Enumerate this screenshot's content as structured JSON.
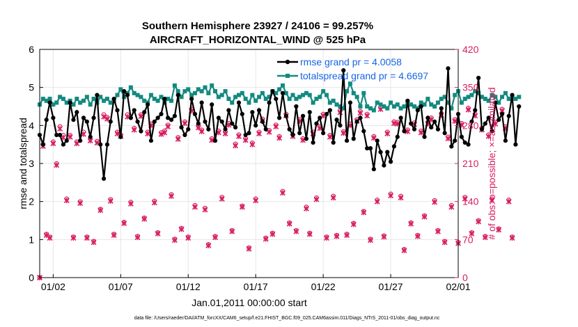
{
  "chart_data": {
    "type": "line",
    "title_line1": "Southern Hemisphere 23927 / 24106 = 99.257%",
    "title_line2": "AIRCRAFT_HORIZONTAL_WIND @ 525 hPa",
    "xlabel": "Jan.01,2011 00:00:00 start",
    "ylabel_left": "rmse and totalspread",
    "ylabel_right": "# of obs: o=possible; ×=assimilated",
    "footer": "data file: /Users/raeder/DAI/ATM_forcXX/CAM6_setup/f.e21.FHIST_BGC.f09_025.CAM6assim.011/Diags_NTrS_2011-01/obs_diag_output.nc",
    "xlim": [
      0.5,
      31.5
    ],
    "ylim_left": [
      0,
      6
    ],
    "ylim_right": [
      0,
      420
    ],
    "x_ticks": [
      {
        "value": 1.5,
        "label": "01/02"
      },
      {
        "value": 6.5,
        "label": "01/07"
      },
      {
        "value": 11.5,
        "label": "01/12"
      },
      {
        "value": 16.5,
        "label": "01/17"
      },
      {
        "value": 21.5,
        "label": "01/22"
      },
      {
        "value": 26.5,
        "label": "01/27"
      },
      {
        "value": 31.5,
        "label": "02/01"
      }
    ],
    "y_ticks_left": [
      0,
      1,
      2,
      3,
      4,
      5,
      6
    ],
    "y_ticks_right": [
      0,
      70,
      140,
      210,
      280,
      350,
      420
    ],
    "legend": [
      {
        "label": "rmse grand pr = 4.0058",
        "color": "#000000"
      },
      {
        "label": "totalspread grand pr = 4.6697",
        "color": "#138a80"
      }
    ],
    "colors": {
      "rmse": "#000000",
      "spread": "#138a80",
      "obs": "#d81b60",
      "legend_text": "#1565e6"
    },
    "series": [
      {
        "name": "rmse",
        "x_start": 0.5,
        "x_step": 0.25,
        "values": [
          3.75,
          3.5,
          4.15,
          4.6,
          4.2,
          3.75,
          3.75,
          3.5,
          3.6,
          4.6,
          4.15,
          4.35,
          3.6,
          4.2,
          4.1,
          3.7,
          4.2,
          4.8,
          3.5,
          2.6,
          3.5,
          4.1,
          4.7,
          4.4,
          3.7,
          4.9,
          4.8,
          4.2,
          4.4,
          4.1,
          3.85,
          4.35,
          4.55,
          3.6,
          4.1,
          4.2,
          4.3,
          4.7,
          4.2,
          4.15,
          4.25,
          4.8,
          3.95,
          3.75,
          3.9,
          4.7,
          4.3,
          4.05,
          4.6,
          4.1,
          3.9,
          4.55,
          3.6,
          4.2,
          4.1,
          3.9,
          4.4,
          4.05,
          3.95,
          4.6,
          4.3,
          3.75,
          3.8,
          4.35,
          4.0,
          4.4,
          4.1,
          3.9,
          4.6,
          4.9,
          4.7,
          4.2,
          4.85,
          4.25,
          3.9,
          3.75,
          4.5,
          3.8,
          4.25,
          3.65,
          4.35,
          3.55,
          4.05,
          4.2,
          3.8,
          4.3,
          4.4,
          3.55,
          4.15,
          4.0,
          5.45,
          3.6,
          4.6,
          3.65,
          4.1,
          4.2,
          3.85,
          3.4,
          3.4,
          2.85,
          3.6,
          3.3,
          2.95,
          3.3,
          3.05,
          3.45,
          3.7,
          4.2,
          3.85,
          4.65,
          4.05,
          3.9,
          4.4,
          4.5,
          3.7,
          4.2,
          3.95,
          4.1,
          3.9,
          4.45,
          3.8,
          5.5,
          3.45,
          3.6,
          4.3,
          3.7,
          3.55,
          3.5,
          4.1,
          4.4,
          5.25,
          3.9,
          4.05,
          4.2,
          3.85,
          4.6,
          4.15,
          4.3,
          3.6,
          4.25,
          4.8,
          3.5,
          4.5
        ]
      },
      {
        "name": "totalspread",
        "x_start": 0.5,
        "x_step": 0.25,
        "values": [
          4.55,
          4.7,
          4.65,
          4.7,
          4.55,
          4.6,
          4.75,
          4.7,
          4.6,
          4.65,
          4.55,
          4.7,
          4.6,
          4.65,
          4.75,
          4.55,
          4.7,
          4.6,
          4.75,
          4.65,
          4.7,
          4.6,
          4.65,
          4.8,
          4.95,
          4.75,
          4.85,
          5.0,
          4.85,
          4.8,
          4.75,
          4.65,
          4.6,
          4.8,
          4.7,
          4.65,
          4.75,
          4.6,
          4.7,
          4.65,
          5.05,
          4.9,
          4.75,
          4.9,
          4.95,
          4.8,
          4.85,
          4.95,
          4.9,
          5.0,
          4.85,
          5.05,
          4.9,
          4.75,
          4.8,
          4.9,
          4.7,
          4.6,
          4.75,
          4.8,
          4.85,
          4.7,
          4.6,
          4.8,
          4.65,
          4.75,
          4.85,
          4.7,
          4.75,
          4.9,
          4.85,
          4.95,
          5.05,
          4.85,
          4.7,
          4.8,
          4.7,
          4.75,
          4.8,
          4.85,
          4.8,
          4.6,
          4.7,
          4.75,
          4.9,
          4.8,
          4.6,
          4.65,
          4.55,
          4.5,
          4.45,
          4.9,
          5.1,
          4.85,
          4.75,
          4.5,
          4.85,
          4.5,
          4.45,
          4.4,
          4.6,
          4.55,
          4.5,
          4.45,
          4.6,
          4.5,
          4.55,
          4.45,
          4.5,
          4.6,
          4.55,
          4.5,
          4.45,
          4.6,
          4.55,
          4.7,
          4.55,
          4.5,
          4.6,
          4.7,
          4.75,
          4.6,
          4.45,
          4.8,
          4.9,
          4.6,
          4.7,
          4.75,
          4.8,
          4.9,
          4.85,
          4.75,
          4.7,
          4.65,
          4.8,
          4.75,
          4.6,
          4.75,
          4.85,
          4.7,
          4.75,
          4.7,
          4.75
        ]
      },
      {
        "name": "obs_possible",
        "x_start": 0.5,
        "x_step": 0.25,
        "values": [
          0,
          245,
          80,
          75,
          250,
          210,
          278,
          262,
          145,
          262,
          75,
          250,
          140,
          268,
          75,
          255,
          67,
          251,
          126,
          300,
          295,
          144,
          80,
          268,
          263,
          102,
          300,
          139,
          275,
          76,
          300,
          110,
          268,
          283,
          141,
          83,
          267,
          270,
          281,
          153,
          71,
          258,
          91,
          287,
          75,
          310,
          133,
          279,
          272,
          128,
          61,
          256,
          76,
          270,
          148,
          268,
          284,
          87,
          246,
          263,
          132,
          256,
          55,
          248,
          145,
          268,
          292,
          73,
          271,
          82,
          281,
          260,
          159,
          301,
          101,
          263,
          87,
          291,
          256,
          130,
          82,
          268,
          147,
          278,
          301,
          75,
          262,
          150,
          78,
          307,
          269,
          80,
          283,
          100,
          291,
          306,
          122,
          301,
          71,
          260,
          143,
          313,
          77,
          268,
          154,
          287,
          286,
          150,
          52,
          272,
          101,
          285,
          78,
          270,
          114,
          286,
          294,
          142,
          87,
          302,
          67,
          259,
          133,
          291,
          65,
          284,
          148,
          312,
          83,
          301,
          105,
          275,
          76,
          263,
          145,
          286,
          90,
          310,
          278,
          143,
          75
        ]
      },
      {
        "name": "obs_assimilated",
        "x_start": 0.5,
        "x_step": 0.25,
        "values": [
          0,
          242,
          78,
          73,
          247,
          207,
          274,
          258,
          142,
          259,
          73,
          247,
          137,
          264,
          73,
          252,
          65,
          248,
          124,
          296,
          292,
          141,
          78,
          265,
          260,
          100,
          296,
          136,
          272,
          74,
          297,
          108,
          265,
          280,
          138,
          81,
          264,
          267,
          278,
          150,
          69,
          255,
          89,
          284,
          73,
          307,
          130,
          276,
          269,
          125,
          59,
          253,
          74,
          267,
          145,
          265,
          281,
          85,
          243,
          260,
          130,
          253,
          53,
          245,
          142,
          265,
          289,
          71,
          268,
          80,
          278,
          257,
          156,
          298,
          99,
          260,
          85,
          288,
          253,
          127,
          80,
          265,
          144,
          275,
          298,
          73,
          259,
          147,
          76,
          304,
          266,
          78,
          280,
          98,
          288,
          303,
          120,
          298,
          69,
          257,
          140,
          310,
          75,
          265,
          151,
          284,
          283,
          147,
          50,
          269,
          99,
          282,
          76,
          267,
          112,
          283,
          291,
          139,
          85,
          299,
          65,
          256,
          130,
          288,
          63,
          281,
          145,
          309,
          81,
          298,
          103,
          272,
          74,
          260,
          142,
          283,
          88,
          307,
          275,
          140,
          73
        ]
      }
    ]
  }
}
